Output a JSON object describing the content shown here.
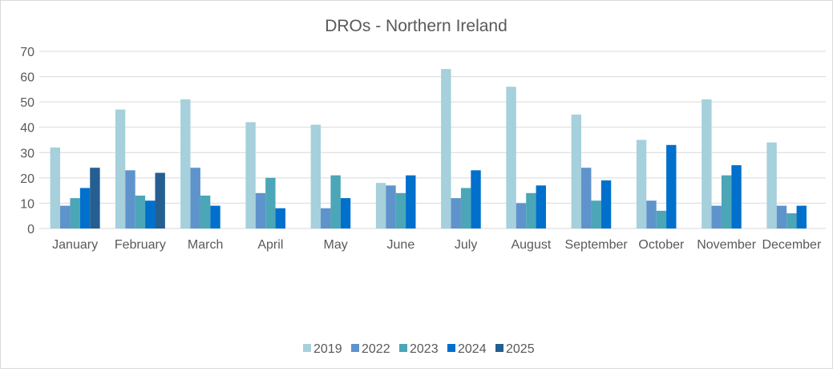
{
  "chart_data": {
    "type": "bar",
    "title": "DROs - Northern Ireland",
    "xlabel": "",
    "ylabel": "",
    "ylim": [
      0,
      70
    ],
    "yticks": [
      0,
      10,
      20,
      30,
      40,
      50,
      60,
      70
    ],
    "grid": true,
    "legend_position": "bottom",
    "categories": [
      "January",
      "February",
      "March",
      "April",
      "May",
      "June",
      "July",
      "August",
      "September",
      "October",
      "November",
      "December"
    ],
    "series": [
      {
        "name": "2019",
        "color": "#A5D0DC",
        "values": [
          32,
          47,
          51,
          42,
          41,
          18,
          63,
          56,
          45,
          35,
          51,
          34
        ]
      },
      {
        "name": "2022",
        "color": "#5F93CC",
        "values": [
          9,
          23,
          24,
          14,
          8,
          17,
          12,
          10,
          24,
          11,
          9,
          9
        ]
      },
      {
        "name": "2023",
        "color": "#4BA6B7",
        "values": [
          12,
          13,
          13,
          20,
          21,
          14,
          16,
          14,
          11,
          7,
          21,
          6
        ]
      },
      {
        "name": "2024",
        "color": "#0070CC",
        "values": [
          16,
          11,
          9,
          8,
          12,
          21,
          23,
          17,
          19,
          33,
          25,
          9
        ]
      },
      {
        "name": "2025",
        "color": "#255E91",
        "values": [
          24,
          22,
          null,
          null,
          null,
          null,
          null,
          null,
          null,
          null,
          null,
          null
        ]
      }
    ]
  }
}
